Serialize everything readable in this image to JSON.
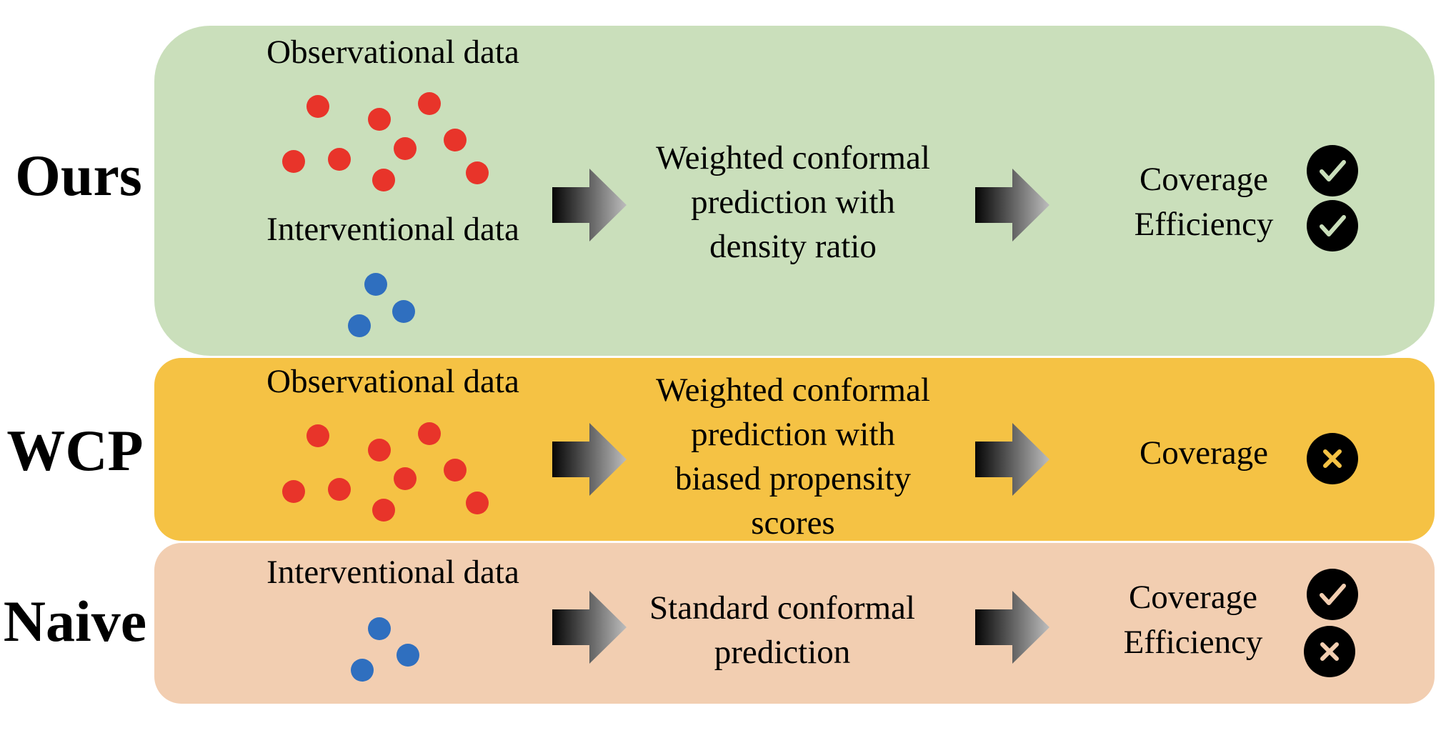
{
  "colors": {
    "ours_panel": "#cadfbb",
    "wcp_panel": "#f5c244",
    "naive_panel": "#f2ceb1",
    "observational_dot": "#e8342a",
    "interventional_dot": "#2f6fbf",
    "check_mark": "#cadfbb",
    "cross_wcp": "#f5c244",
    "cross_naive": "#f2ceb1"
  },
  "icons": {
    "ok": "check-icon",
    "fail": "cross-icon",
    "flow": "arrow-right-icon"
  },
  "rows": {
    "ours": {
      "label": "Ours",
      "observational_title": "Observational data",
      "interventional_title": "Interventional data",
      "method": [
        "Weighted conformal",
        "prediction with",
        "density ratio"
      ],
      "results": [
        {
          "metric": "Coverage",
          "status": "check"
        },
        {
          "metric": "Efficiency",
          "status": "check"
        }
      ]
    },
    "wcp": {
      "label": "WCP",
      "observational_title": "Observational data",
      "method": [
        "Weighted conformal",
        "prediction with",
        "biased propensity",
        "scores"
      ],
      "results": [
        {
          "metric": "Coverage",
          "status": "cross"
        }
      ]
    },
    "naive": {
      "label": "Naive",
      "interventional_title": "Interventional data",
      "method": [
        "Standard conformal",
        "prediction"
      ],
      "results": [
        {
          "metric": "Coverage",
          "status": "check"
        },
        {
          "metric": "Efficiency",
          "status": "cross"
        }
      ]
    }
  }
}
